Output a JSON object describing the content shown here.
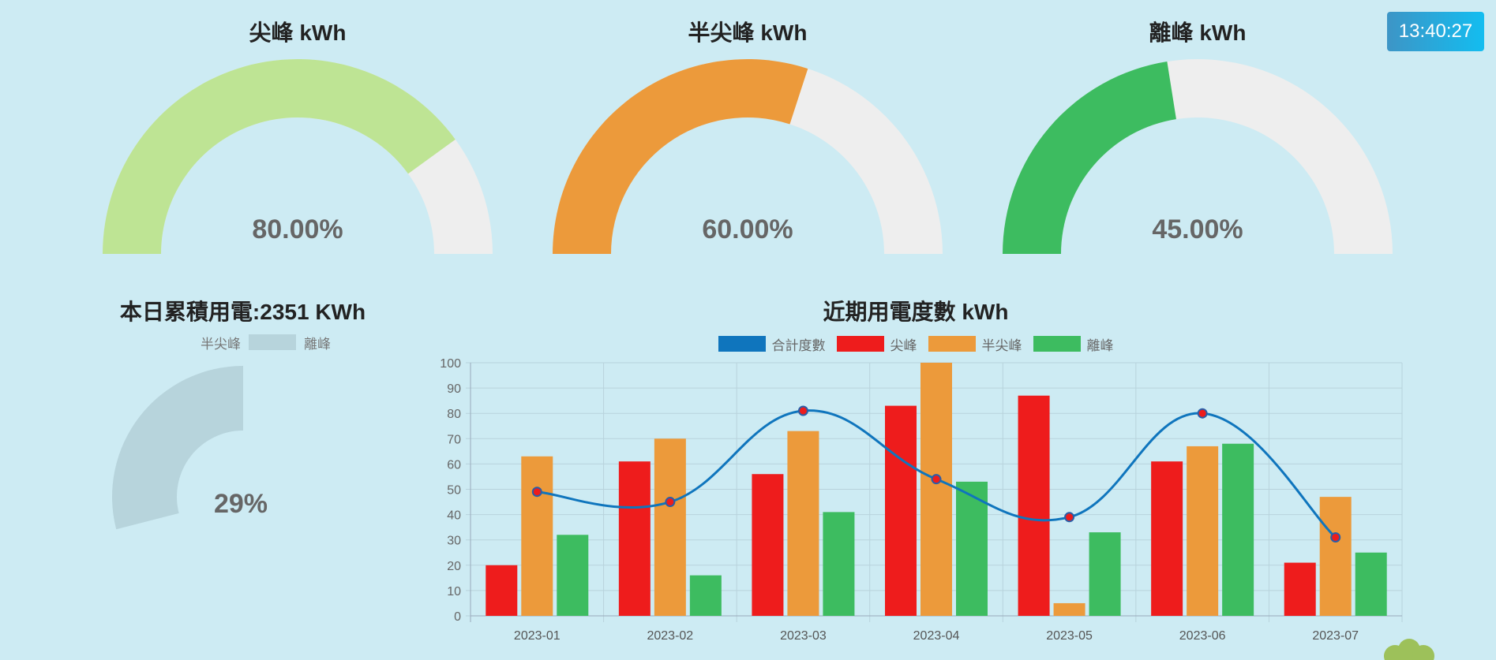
{
  "gauges": [
    {
      "title": "尖峰 kWh",
      "percent_text": "80.00%",
      "value": 80,
      "color": "#bee494"
    },
    {
      "title": "半尖峰 kWh",
      "percent_text": "60.00%",
      "value": 60,
      "color": "#ec9a3b"
    },
    {
      "title": "離峰 kWh",
      "percent_text": "45.00%",
      "value": 45,
      "color": "#3dbc60"
    }
  ],
  "gauge_track_color": "#eeeeee",
  "clock": {
    "time": "13:40:27"
  },
  "daily": {
    "title": "本日累積用電:2351 KWh",
    "legend": {
      "left_label": "半尖峰",
      "right_label": "離峰",
      "swatch_color": "#b7d4dc"
    },
    "percent_text": "29%",
    "value": 29,
    "color": "#b7d4dc"
  },
  "chart_data": {
    "type": "bar",
    "title": "近期用電度數 kWh",
    "categories": [
      "2023-01",
      "2023-02",
      "2023-03",
      "2023-04",
      "2023-05",
      "2023-06",
      "2023-07"
    ],
    "series": [
      {
        "name": "合計度數",
        "type": "line",
        "color": "#0f75bd",
        "values": [
          49,
          45,
          81,
          54,
          39,
          80,
          31
        ]
      },
      {
        "name": "尖峰",
        "type": "bar",
        "color": "#ee1c1c",
        "values": [
          20,
          61,
          56,
          83,
          87,
          61,
          21
        ]
      },
      {
        "name": "半尖峰",
        "type": "bar",
        "color": "#ec9a3b",
        "values": [
          63,
          70,
          73,
          100,
          5,
          67,
          47
        ]
      },
      {
        "name": "離峰",
        "type": "bar",
        "color": "#3dbc60",
        "values": [
          32,
          16,
          41,
          53,
          33,
          68,
          25
        ]
      }
    ],
    "ylim": [
      0,
      100
    ],
    "yticks": [
      0,
      10,
      20,
      30,
      40,
      50,
      60,
      70,
      80,
      90,
      100
    ],
    "grid": true,
    "legend": "top"
  }
}
